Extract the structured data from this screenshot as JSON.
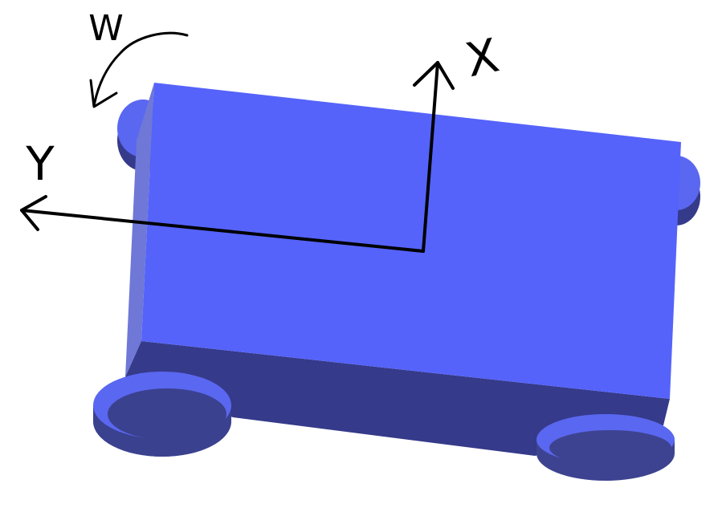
{
  "labels": {
    "x_axis": "X",
    "y_axis": "Y",
    "rotation": "W"
  },
  "colors": {
    "body_top": "#5563fb",
    "body_side": "#353a8a",
    "body_left_face": "#6f78d6",
    "wheel_top": "#5a67f0",
    "wheel_side": "#3a418f",
    "ink": "#000000",
    "background": "#ffffff"
  }
}
